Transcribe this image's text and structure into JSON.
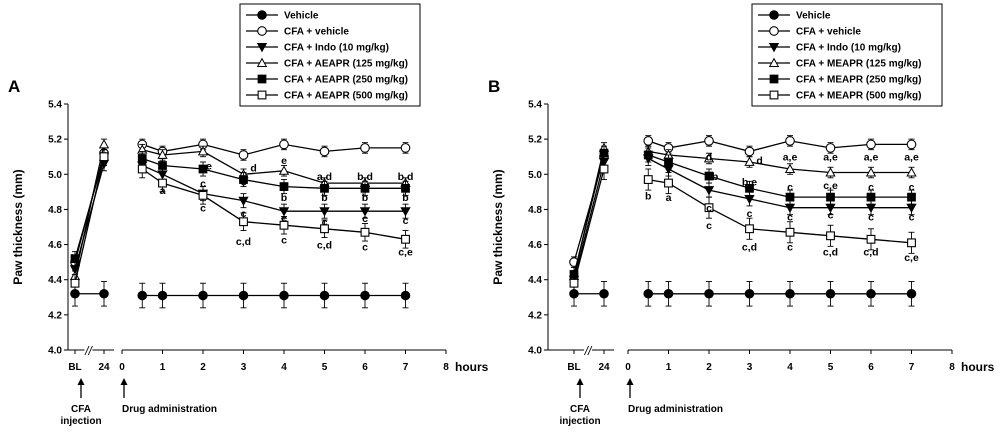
{
  "chart_data": [
    {
      "type": "line",
      "panel_label": "A",
      "ylabel": "Paw thickness (mm)",
      "xlabel": "hours",
      "ylim": [
        4.0,
        5.4
      ],
      "yticks": [
        "4.0",
        "4.2",
        "4.4",
        "4.6",
        "4.8",
        "5.0",
        "5.2",
        "5.4"
      ],
      "xticks_left": [
        "BL",
        "24"
      ],
      "xticks_right": [
        "0",
        "1",
        "2",
        "3",
        "4",
        "5",
        "6",
        "7",
        "8"
      ],
      "axis_break": "//",
      "arrow1_label": [
        "CFA",
        "injection"
      ],
      "arrow2_label": "Drug administration",
      "legend": [
        "Vehicle",
        "CFA + vehicle",
        "CFA + Indo (10 mg/kg)",
        "CFA + AEAPR (125 mg/kg)",
        "CFA + AEAPR (250 mg/kg)",
        "CFA + AEAPR (500 mg/kg)"
      ],
      "series": [
        {
          "name": "Vehicle",
          "marker": "circle-filled",
          "pre": [
            4.32,
            4.32
          ],
          "x": [
            0.5,
            1,
            2,
            3,
            4,
            5,
            6,
            7
          ],
          "y": [
            4.31,
            4.31,
            4.31,
            4.31,
            4.31,
            4.31,
            4.31,
            4.31
          ],
          "err": 0.07
        },
        {
          "name": "CFA + vehicle",
          "marker": "circle-open",
          "pre": [
            4.5,
            5.12
          ],
          "x": [
            0.5,
            1,
            2,
            3,
            4,
            5,
            6,
            7
          ],
          "y": [
            5.17,
            5.13,
            5.17,
            5.11,
            5.17,
            5.13,
            5.15,
            5.15
          ],
          "err": 0.03
        },
        {
          "name": "CFA + Indo (10 mg/kg)",
          "marker": "triangle-down",
          "pre": [
            4.46,
            5.06
          ],
          "x": [
            0.5,
            1,
            2,
            3,
            4,
            5,
            6,
            7
          ],
          "y": [
            5.05,
            5.0,
            4.89,
            4.85,
            4.79,
            4.79,
            4.79,
            4.79
          ],
          "err": 0.04
        },
        {
          "name": "CFA + AEAPR (125 mg/kg)",
          "marker": "triangle-up",
          "pre": [
            4.42,
            5.17
          ],
          "x": [
            0.5,
            1,
            2,
            3,
            4,
            5,
            6,
            7
          ],
          "y": [
            5.14,
            5.11,
            5.13,
            5.0,
            5.02,
            4.95,
            4.95,
            4.95
          ],
          "err": 0.03
        },
        {
          "name": "CFA + AEAPR (250 mg/kg)",
          "marker": "square-filled",
          "pre": [
            4.52,
            5.1
          ],
          "x": [
            0.5,
            1,
            2,
            3,
            4,
            5,
            6,
            7
          ],
          "y": [
            5.09,
            5.05,
            5.03,
            4.97,
            4.93,
            4.92,
            4.92,
            4.92
          ],
          "err": 0.04
        },
        {
          "name": "CFA + AEAPR (500 mg/kg)",
          "marker": "square-open",
          "pre": [
            4.38,
            5.1
          ],
          "x": [
            0.5,
            1,
            2,
            3,
            4,
            5,
            6,
            7
          ],
          "y": [
            5.03,
            4.95,
            4.88,
            4.73,
            4.71,
            4.69,
            4.67,
            4.63
          ],
          "err": 0.05
        }
      ],
      "annotations": [
        {
          "x": 1,
          "y": 4.91,
          "text": "a"
        },
        {
          "x": 2,
          "y": 4.81,
          "text": "c"
        },
        {
          "x": 2.15,
          "y": 5.05,
          "text": "e"
        },
        {
          "x": 2,
          "y": 4.95,
          "text": "c"
        },
        {
          "x": 3,
          "y": 4.96,
          "text": "c"
        },
        {
          "x": 3.25,
          "y": 5.04,
          "text": "d"
        },
        {
          "x": 3,
          "y": 4.78,
          "text": "c"
        },
        {
          "x": 3,
          "y": 4.62,
          "text": "c,d"
        },
        {
          "x": 4,
          "y": 5.08,
          "text": "e"
        },
        {
          "x": 4,
          "y": 4.87,
          "text": "b"
        },
        {
          "x": 4,
          "y": 4.75,
          "text": "c"
        },
        {
          "x": 4,
          "y": 4.63,
          "text": "c"
        },
        {
          "x": 5,
          "y": 4.99,
          "text": "a,d"
        },
        {
          "x": 5,
          "y": 4.87,
          "text": "b"
        },
        {
          "x": 5,
          "y": 4.73,
          "text": "c"
        },
        {
          "x": 5,
          "y": 4.6,
          "text": "c,d"
        },
        {
          "x": 6,
          "y": 4.99,
          "text": "b,d"
        },
        {
          "x": 6,
          "y": 4.87,
          "text": "b"
        },
        {
          "x": 6,
          "y": 4.75,
          "text": "c"
        },
        {
          "x": 6,
          "y": 4.59,
          "text": "c"
        },
        {
          "x": 7,
          "y": 4.99,
          "text": "b,d"
        },
        {
          "x": 7,
          "y": 4.87,
          "text": "b"
        },
        {
          "x": 7,
          "y": 4.74,
          "text": "c"
        },
        {
          "x": 7,
          "y": 4.56,
          "text": "c,e"
        }
      ]
    },
    {
      "type": "line",
      "panel_label": "B",
      "ylabel": "Paw thickness (mm)",
      "xlabel": "hours",
      "ylim": [
        4.0,
        5.4
      ],
      "yticks": [
        "4.0",
        "4.2",
        "4.4",
        "4.6",
        "4.8",
        "5.0",
        "5.2",
        "5.4"
      ],
      "xticks_left": [
        "BL",
        "24"
      ],
      "xticks_right": [
        "0",
        "1",
        "2",
        "3",
        "4",
        "5",
        "6",
        "7",
        "8"
      ],
      "axis_break": "//",
      "arrow1_label": [
        "CFA",
        "injection"
      ],
      "arrow2_label": "Drug administration",
      "legend": [
        "Vehicle",
        "CFA + vehicle",
        "CFA + Indo (10 mg/kg)",
        "CFA + MEAPR (125 mg/kg)",
        "CFA + MEAPR (250 mg/kg)",
        "CFA + MEAPR (500 mg/kg)"
      ],
      "series": [
        {
          "name": "Vehicle",
          "marker": "circle-filled",
          "pre": [
            4.32,
            4.32
          ],
          "x": [
            0.5,
            1,
            2,
            3,
            4,
            5,
            6,
            7
          ],
          "y": [
            4.32,
            4.32,
            4.32,
            4.32,
            4.32,
            4.32,
            4.32,
            4.32
          ],
          "err": 0.07
        },
        {
          "name": "CFA + vehicle",
          "marker": "circle-open",
          "pre": [
            4.5,
            5.1
          ],
          "x": [
            0.5,
            1,
            2,
            3,
            4,
            5,
            6,
            7
          ],
          "y": [
            5.19,
            5.15,
            5.19,
            5.13,
            5.19,
            5.15,
            5.17,
            5.17
          ],
          "err": 0.03
        },
        {
          "name": "CFA + Indo (10 mg/kg)",
          "marker": "triangle-down",
          "pre": [
            4.4,
            5.07
          ],
          "x": [
            0.5,
            1,
            2,
            3,
            4,
            5,
            6,
            7
          ],
          "y": [
            5.09,
            5.03,
            4.91,
            4.86,
            4.81,
            4.81,
            4.81,
            4.81
          ],
          "err": 0.04
        },
        {
          "name": "CFA + MEAPR (125 mg/kg)",
          "marker": "triangle-up",
          "pre": [
            4.42,
            5.15
          ],
          "x": [
            0.5,
            1,
            2,
            3,
            4,
            5,
            6,
            7
          ],
          "y": [
            5.13,
            5.11,
            5.09,
            5.07,
            5.03,
            5.01,
            5.01,
            5.01
          ],
          "err": 0.03
        },
        {
          "name": "CFA + MEAPR (250 mg/kg)",
          "marker": "square-filled",
          "pre": [
            4.43,
            5.12
          ],
          "x": [
            0.5,
            1,
            2,
            3,
            4,
            5,
            6,
            7
          ],
          "y": [
            5.11,
            5.07,
            4.99,
            4.92,
            4.87,
            4.87,
            4.87,
            4.87
          ],
          "err": 0.04
        },
        {
          "name": "CFA + MEAPR (500 mg/kg)",
          "marker": "square-open",
          "pre": [
            4.38,
            5.03
          ],
          "x": [
            0.5,
            1,
            2,
            3,
            4,
            5,
            6,
            7
          ],
          "y": [
            4.97,
            4.95,
            4.81,
            4.69,
            4.67,
            4.65,
            4.63,
            4.61
          ],
          "err": 0.06
        }
      ],
      "annotations": [
        {
          "x": 0.5,
          "y": 4.88,
          "text": "b"
        },
        {
          "x": 1,
          "y": 4.87,
          "text": "a"
        },
        {
          "x": 2,
          "y": 5.1,
          "text": "d"
        },
        {
          "x": 2.15,
          "y": 4.99,
          "text": "b"
        },
        {
          "x": 2,
          "y": 4.81,
          "text": "c"
        },
        {
          "x": 2,
          "y": 4.71,
          "text": "c"
        },
        {
          "x": 3.25,
          "y": 5.08,
          "text": "d"
        },
        {
          "x": 3,
          "y": 4.96,
          "text": "b,e"
        },
        {
          "x": 3,
          "y": 4.78,
          "text": "c"
        },
        {
          "x": 3,
          "y": 4.59,
          "text": "c,d"
        },
        {
          "x": 4,
          "y": 5.1,
          "text": "a,e"
        },
        {
          "x": 4,
          "y": 4.93,
          "text": "c"
        },
        {
          "x": 4,
          "y": 4.76,
          "text": "c"
        },
        {
          "x": 4,
          "y": 4.59,
          "text": "c"
        },
        {
          "x": 5,
          "y": 5.1,
          "text": "a,e"
        },
        {
          "x": 5,
          "y": 4.94,
          "text": "c,e"
        },
        {
          "x": 5,
          "y": 4.77,
          "text": "c"
        },
        {
          "x": 5,
          "y": 4.56,
          "text": "c,d"
        },
        {
          "x": 6,
          "y": 5.1,
          "text": "a,e"
        },
        {
          "x": 6,
          "y": 4.93,
          "text": "c"
        },
        {
          "x": 6,
          "y": 4.76,
          "text": "c"
        },
        {
          "x": 6,
          "y": 4.56,
          "text": "c,d"
        },
        {
          "x": 7,
          "y": 5.1,
          "text": "a,e"
        },
        {
          "x": 7,
          "y": 4.93,
          "text": "c"
        },
        {
          "x": 7,
          "y": 4.76,
          "text": "c"
        },
        {
          "x": 7,
          "y": 4.53,
          "text": "c,e"
        }
      ]
    }
  ]
}
